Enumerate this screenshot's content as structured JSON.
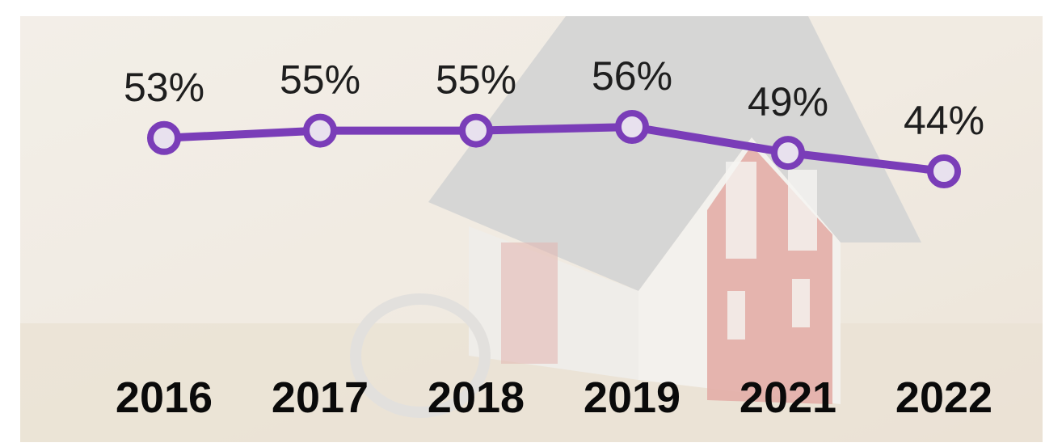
{
  "chart_data": {
    "type": "line",
    "categories": [
      "2016",
      "2017",
      "2018",
      "2019",
      "2021",
      "2022"
    ],
    "values": [
      53,
      55,
      55,
      56,
      49,
      44
    ],
    "value_labels": [
      "53%",
      "55%",
      "55%",
      "56%",
      "49%",
      "44%"
    ],
    "color": "#7a3db8"
  }
}
